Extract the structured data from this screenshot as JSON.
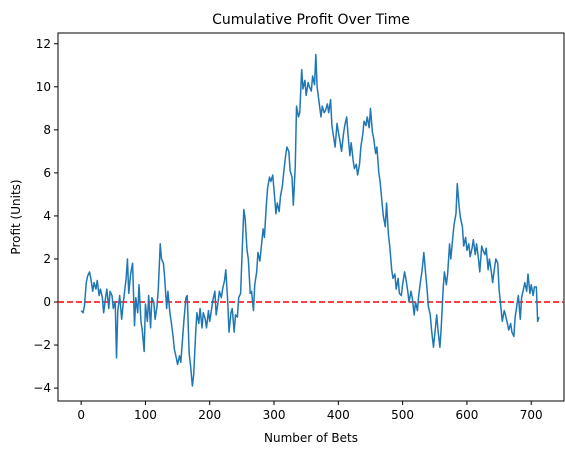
{
  "chart_data": {
    "type": "line",
    "title": "Cumulative Profit Over Time",
    "xlabel": "Number of Bets",
    "ylabel": "Profit (Units)",
    "xlim": [
      -36,
      751
    ],
    "ylim": [
      -4.6,
      12.5
    ],
    "xticks": [
      0,
      100,
      200,
      300,
      400,
      500,
      600,
      700
    ],
    "yticks": [
      -4,
      -2,
      0,
      2,
      4,
      6,
      8,
      10,
      12
    ],
    "grid": false,
    "reference_line": {
      "y": 0,
      "color": "#ff0000",
      "style": "dashed"
    },
    "series": [
      {
        "color": "#1f77b4",
        "points": [
          [
            0,
            -0.4
          ],
          [
            3,
            -0.5
          ],
          [
            5,
            -0.2
          ],
          [
            8,
            0.9
          ],
          [
            10,
            1.2
          ],
          [
            13,
            1.4
          ],
          [
            15,
            1.1
          ],
          [
            18,
            0.5
          ],
          [
            20,
            0.9
          ],
          [
            23,
            0.6
          ],
          [
            25,
            1.0
          ],
          [
            28,
            0.3
          ],
          [
            30,
            0.6
          ],
          [
            33,
            0.2
          ],
          [
            35,
            -0.5
          ],
          [
            38,
            0.2
          ],
          [
            40,
            0.6
          ],
          [
            43,
            -0.3
          ],
          [
            45,
            0.5
          ],
          [
            48,
            0.3
          ],
          [
            50,
            -0.3
          ],
          [
            53,
            0.0
          ],
          [
            55,
            -2.6
          ],
          [
            57,
            -0.4
          ],
          [
            60,
            0.3
          ],
          [
            63,
            -0.8
          ],
          [
            65,
            -0.2
          ],
          [
            68,
            0.6
          ],
          [
            70,
            1.1
          ],
          [
            72,
            2.0
          ],
          [
            74,
            0.4
          ],
          [
            77,
            1.3
          ],
          [
            80,
            1.8
          ],
          [
            83,
            -1.1
          ],
          [
            85,
            0.2
          ],
          [
            88,
            -0.5
          ],
          [
            90,
            0.8
          ],
          [
            93,
            -0.9
          ],
          [
            95,
            -1.3
          ],
          [
            98,
            -2.3
          ],
          [
            100,
            -0.1
          ],
          [
            103,
            -0.9
          ],
          [
            105,
            0.3
          ],
          [
            108,
            -1.2
          ],
          [
            110,
            0.2
          ],
          [
            113,
            0.0
          ],
          [
            115,
            -0.8
          ],
          [
            118,
            -0.2
          ],
          [
            120,
            0.6
          ],
          [
            123,
            2.7
          ],
          [
            125,
            2.0
          ],
          [
            128,
            1.8
          ],
          [
            130,
            1.1
          ],
          [
            133,
            -0.3
          ],
          [
            135,
            0.5
          ],
          [
            138,
            -0.5
          ],
          [
            140,
            -0.9
          ],
          [
            143,
            -1.6
          ],
          [
            145,
            -2.2
          ],
          [
            148,
            -2.6
          ],
          [
            150,
            -2.9
          ],
          [
            153,
            -2.5
          ],
          [
            155,
            -2.8
          ],
          [
            158,
            -1.6
          ],
          [
            160,
            -0.8
          ],
          [
            163,
            0.2
          ],
          [
            165,
            0.3
          ],
          [
            168,
            -2.4
          ],
          [
            170,
            -2.9
          ],
          [
            173,
            -3.9
          ],
          [
            175,
            -3.4
          ],
          [
            178,
            -1.5
          ],
          [
            180,
            -0.5
          ],
          [
            183,
            -1.0
          ],
          [
            185,
            -0.3
          ],
          [
            188,
            -1.2
          ],
          [
            190,
            -0.5
          ],
          [
            193,
            -0.8
          ],
          [
            195,
            -1.2
          ],
          [
            198,
            -0.4
          ],
          [
            200,
            -0.9
          ],
          [
            203,
            -0.3
          ],
          [
            205,
            0.1
          ],
          [
            208,
            0.5
          ],
          [
            210,
            -0.6
          ],
          [
            213,
            0.0
          ],
          [
            215,
            0.5
          ],
          [
            218,
            0.2
          ],
          [
            220,
            0.6
          ],
          [
            223,
            1.0
          ],
          [
            225,
            1.5
          ],
          [
            228,
            0.0
          ],
          [
            230,
            -1.4
          ],
          [
            233,
            -0.5
          ],
          [
            235,
            -0.3
          ],
          [
            238,
            -1.4
          ],
          [
            240,
            -0.6
          ],
          [
            243,
            -0.7
          ],
          [
            245,
            0.2
          ],
          [
            248,
            0.4
          ],
          [
            250,
            2.0
          ],
          [
            253,
            4.3
          ],
          [
            255,
            3.9
          ],
          [
            258,
            2.4
          ],
          [
            260,
            2.0
          ],
          [
            263,
            0.4
          ],
          [
            265,
            0.5
          ],
          [
            268,
            -0.4
          ],
          [
            270,
            0.8
          ],
          [
            273,
            1.4
          ],
          [
            275,
            2.3
          ],
          [
            278,
            1.9
          ],
          [
            280,
            2.5
          ],
          [
            283,
            3.4
          ],
          [
            285,
            3.0
          ],
          [
            288,
            4.5
          ],
          [
            290,
            5.3
          ],
          [
            293,
            5.8
          ],
          [
            295,
            5.6
          ],
          [
            298,
            5.9
          ],
          [
            300,
            5.2
          ],
          [
            303,
            4.1
          ],
          [
            305,
            4.6
          ],
          [
            308,
            4.2
          ],
          [
            310,
            4.9
          ],
          [
            313,
            5.4
          ],
          [
            315,
            6.0
          ],
          [
            318,
            6.8
          ],
          [
            320,
            7.2
          ],
          [
            323,
            7.0
          ],
          [
            325,
            6.1
          ],
          [
            328,
            5.8
          ],
          [
            330,
            4.5
          ],
          [
            333,
            6.3
          ],
          [
            335,
            9.1
          ],
          [
            338,
            8.6
          ],
          [
            340,
            8.8
          ],
          [
            343,
            10.8
          ],
          [
            345,
            9.9
          ],
          [
            348,
            10.3
          ],
          [
            350,
            9.6
          ],
          [
            353,
            10.2
          ],
          [
            355,
            10.0
          ],
          [
            358,
            9.8
          ],
          [
            360,
            10.5
          ],
          [
            363,
            10.1
          ],
          [
            365,
            11.5
          ],
          [
            367,
            10.0
          ],
          [
            370,
            9.3
          ],
          [
            373,
            8.6
          ],
          [
            375,
            9.1
          ],
          [
            378,
            8.8
          ],
          [
            380,
            8.9
          ],
          [
            383,
            9.2
          ],
          [
            385,
            8.8
          ],
          [
            388,
            9.4
          ],
          [
            390,
            8.2
          ],
          [
            393,
            7.6
          ],
          [
            395,
            7.2
          ],
          [
            398,
            8.3
          ],
          [
            400,
            7.9
          ],
          [
            403,
            7.4
          ],
          [
            405,
            7.0
          ],
          [
            408,
            7.8
          ],
          [
            410,
            8.2
          ],
          [
            413,
            8.6
          ],
          [
            415,
            7.8
          ],
          [
            418,
            6.8
          ],
          [
            420,
            7.4
          ],
          [
            423,
            6.6
          ],
          [
            425,
            6.2
          ],
          [
            428,
            6.4
          ],
          [
            430,
            5.9
          ],
          [
            433,
            6.4
          ],
          [
            435,
            7.2
          ],
          [
            438,
            7.8
          ],
          [
            440,
            8.4
          ],
          [
            443,
            8.2
          ],
          [
            445,
            8.6
          ],
          [
            448,
            8.1
          ],
          [
            450,
            9.0
          ],
          [
            453,
            7.9
          ],
          [
            455,
            7.6
          ],
          [
            458,
            6.9
          ],
          [
            460,
            7.2
          ],
          [
            463,
            6.0
          ],
          [
            465,
            5.6
          ],
          [
            468,
            4.6
          ],
          [
            470,
            4.0
          ],
          [
            473,
            3.5
          ],
          [
            475,
            4.6
          ],
          [
            478,
            3.1
          ],
          [
            480,
            2.6
          ],
          [
            483,
            1.5
          ],
          [
            485,
            1.1
          ],
          [
            488,
            1.3
          ],
          [
            490,
            0.6
          ],
          [
            493,
            1.1
          ],
          [
            495,
            0.4
          ],
          [
            498,
            0.3
          ],
          [
            500,
            0.8
          ],
          [
            503,
            1.4
          ],
          [
            505,
            1.1
          ],
          [
            508,
            0.5
          ],
          [
            510,
            0.0
          ],
          [
            513,
            0.5
          ],
          [
            515,
            0.2
          ],
          [
            518,
            -0.6
          ],
          [
            520,
            0.0
          ],
          [
            523,
            -0.4
          ],
          [
            525,
            0.3
          ],
          [
            528,
            1.0
          ],
          [
            530,
            1.4
          ],
          [
            533,
            2.3
          ],
          [
            535,
            1.6
          ],
          [
            538,
            0.6
          ],
          [
            540,
            -0.2
          ],
          [
            543,
            -0.6
          ],
          [
            545,
            -1.3
          ],
          [
            548,
            -2.1
          ],
          [
            550,
            -1.5
          ],
          [
            553,
            -0.6
          ],
          [
            555,
            -1.3
          ],
          [
            558,
            -2.1
          ],
          [
            560,
            -1.2
          ],
          [
            563,
            0.6
          ],
          [
            565,
            1.4
          ],
          [
            568,
            0.8
          ],
          [
            570,
            1.3
          ],
          [
            573,
            2.7
          ],
          [
            575,
            2.0
          ],
          [
            578,
            3.0
          ],
          [
            580,
            3.6
          ],
          [
            583,
            4.1
          ],
          [
            585,
            5.5
          ],
          [
            588,
            4.4
          ],
          [
            590,
            3.9
          ],
          [
            593,
            3.5
          ],
          [
            595,
            2.6
          ],
          [
            598,
            3.0
          ],
          [
            600,
            2.4
          ],
          [
            603,
            2.7
          ],
          [
            605,
            2.1
          ],
          [
            608,
            2.5
          ],
          [
            610,
            2.9
          ],
          [
            613,
            2.2
          ],
          [
            615,
            2.7
          ],
          [
            618,
            2.0
          ],
          [
            620,
            1.4
          ],
          [
            623,
            2.6
          ],
          [
            625,
            2.4
          ],
          [
            628,
            2.2
          ],
          [
            630,
            2.5
          ],
          [
            633,
            1.5
          ],
          [
            635,
            2.0
          ],
          [
            638,
            1.4
          ],
          [
            640,
            0.9
          ],
          [
            643,
            1.6
          ],
          [
            645,
            2.0
          ],
          [
            648,
            1.8
          ],
          [
            650,
            0.6
          ],
          [
            653,
            -0.3
          ],
          [
            655,
            -0.9
          ],
          [
            658,
            -0.4
          ],
          [
            660,
            -0.6
          ],
          [
            663,
            -1.0
          ],
          [
            665,
            -1.3
          ],
          [
            668,
            -1.0
          ],
          [
            670,
            -1.4
          ],
          [
            673,
            -1.6
          ],
          [
            675,
            -0.7
          ],
          [
            678,
            -0.1
          ],
          [
            680,
            0.3
          ],
          [
            683,
            -0.8
          ],
          [
            685,
            0.2
          ],
          [
            688,
            0.6
          ],
          [
            690,
            0.9
          ],
          [
            693,
            0.5
          ],
          [
            695,
            1.3
          ],
          [
            698,
            0.4
          ],
          [
            700,
            0.8
          ],
          [
            703,
            0.3
          ],
          [
            705,
            0.7
          ],
          [
            708,
            0.7
          ],
          [
            710,
            -0.9
          ],
          [
            712,
            -0.7
          ]
        ]
      }
    ]
  }
}
